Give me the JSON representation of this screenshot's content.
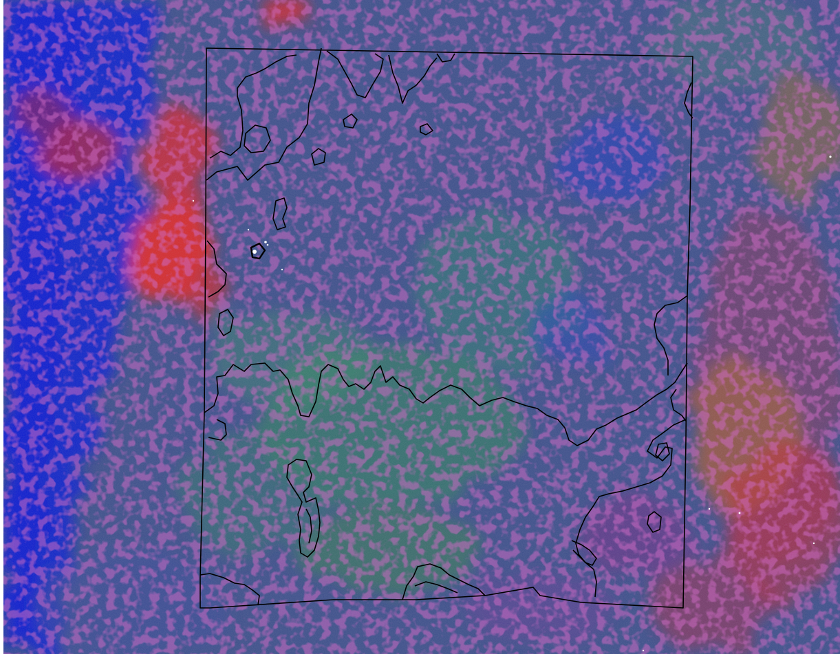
{
  "map": {
    "kind": "false-color satellite composite",
    "background": "#ffffff",
    "palette": {
      "base": "#3b4f8f",
      "blue": "#1028d0",
      "deep_blue": "#0a1cc8",
      "green": "#2f8a5a",
      "teal": "#2a6a84",
      "red": "#d02a2a",
      "magenta": "#a0208a",
      "purple": "#6a2aa0",
      "orange": "#b05a2a",
      "boundary_stroke": "#000000",
      "marker_fill": "#ffffff"
    },
    "legend": null,
    "labels": []
  }
}
